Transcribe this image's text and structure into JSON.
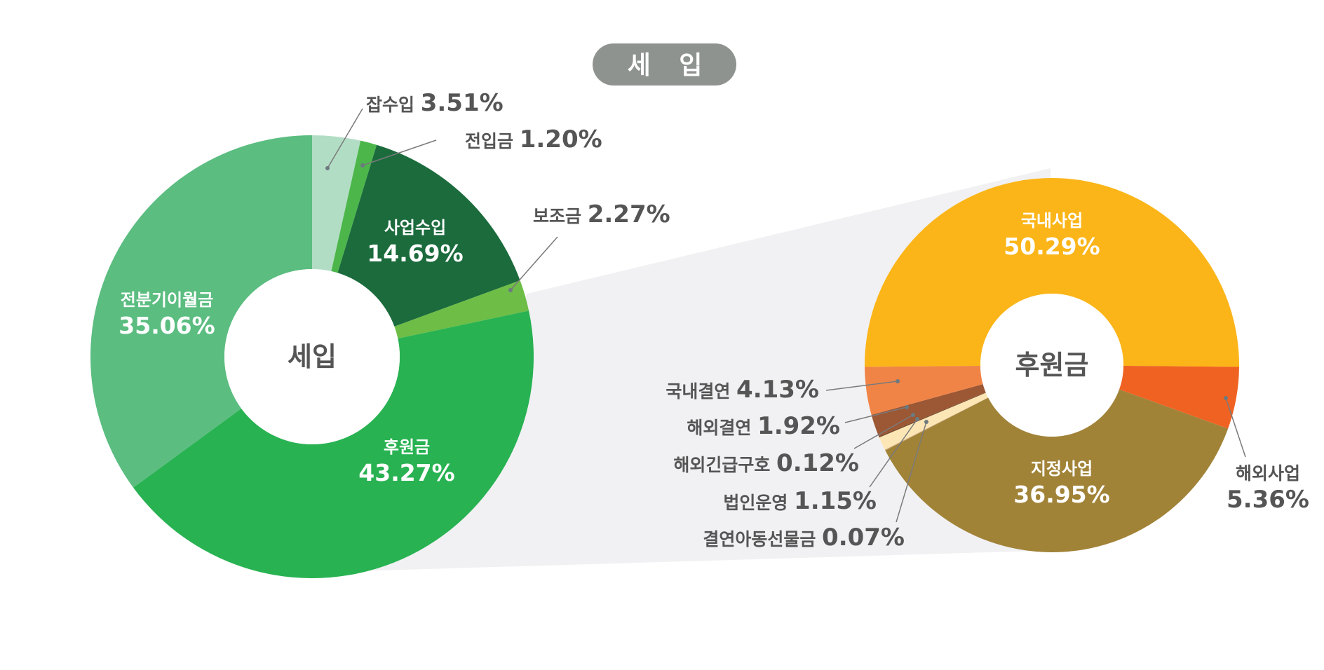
{
  "header": {
    "title": "세 입"
  },
  "colors": {
    "title_bg": "#8e9390",
    "text": "#555555",
    "zoom_band": "#f1f1f3"
  },
  "chart_data": [
    {
      "type": "pie",
      "style": "donut",
      "center_label": "세입",
      "slices": [
        {
          "label": "잡수입",
          "value": 3.51,
          "display": "3.51%",
          "color": "#b2ddc5"
        },
        {
          "label": "전입금",
          "value": 1.2,
          "display": "1.20%",
          "color": "#4cb64b"
        },
        {
          "label": "사업수입",
          "value": 14.69,
          "display": "14.69%",
          "color": "#1b6b3c"
        },
        {
          "label": "보조금",
          "value": 2.27,
          "display": "2.27%",
          "color": "#6dbd46"
        },
        {
          "label": "후원금",
          "value": 43.27,
          "display": "43.27%",
          "color": "#28b252"
        },
        {
          "label": "전분기이월금",
          "value": 35.06,
          "display": "35.06%",
          "color": "#5bbd80"
        }
      ]
    },
    {
      "type": "pie",
      "style": "donut",
      "center_label": "후원금",
      "parent_slice": "후원금",
      "slices": [
        {
          "label": "국내사업",
          "value": 50.29,
          "display": "50.29%",
          "color": "#fbb518"
        },
        {
          "label": "해외사업",
          "value": 5.36,
          "display": "5.36%",
          "color": "#f06222"
        },
        {
          "label": "지정사업",
          "value": 36.95,
          "display": "36.95%",
          "color": "#a18338"
        },
        {
          "label": "결연아동선물금",
          "value": 0.07,
          "display": "0.07%",
          "color": "#c8a070"
        },
        {
          "label": "법인운영",
          "value": 1.15,
          "display": "1.15%",
          "color": "#fde6b6"
        },
        {
          "label": "해외긴급구호",
          "value": 0.12,
          "display": "0.12%",
          "color": "#7a4a2a"
        },
        {
          "label": "해외결연",
          "value": 1.92,
          "display": "1.92%",
          "color": "#9c5734"
        },
        {
          "label": "국내결연",
          "value": 4.13,
          "display": "4.13%",
          "color": "#f08447"
        }
      ]
    }
  ]
}
